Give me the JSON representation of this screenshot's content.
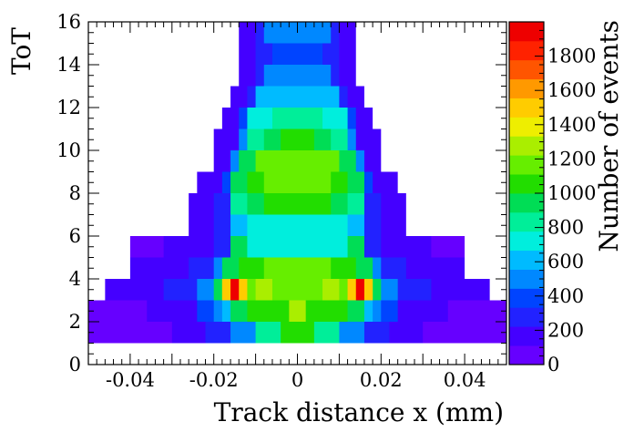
{
  "chart_data": {
    "type": "heatmap",
    "title": "",
    "xlabel": "Track distance x (mm)",
    "ylabel": "ToT",
    "zlabel": "Number of events",
    "xlim": [
      -0.05,
      0.05
    ],
    "ylim": [
      0,
      16
    ],
    "zlim": [
      0,
      2000
    ],
    "x_ticks": [
      -0.04,
      -0.02,
      0,
      0.02,
      0.04
    ],
    "x_tick_labels": [
      "-0.04",
      "-0.02",
      "0",
      "0.02",
      "0.04"
    ],
    "y_ticks": [
      0,
      2,
      4,
      6,
      8,
      10,
      12,
      14,
      16
    ],
    "y_tick_labels": [
      "0",
      "2",
      "4",
      "6",
      "8",
      "10",
      "12",
      "14",
      "16"
    ],
    "z_ticks": [
      0,
      200,
      400,
      600,
      800,
      1000,
      1200,
      1400,
      1600,
      1800
    ],
    "z_tick_labels": [
      "0",
      "200",
      "400",
      "600",
      "800",
      "1000",
      "1200",
      "1400",
      "1600",
      "1800"
    ],
    "x_bin_width": 0.002,
    "y_bin_width": 1,
    "y_bins_start": 1,
    "palette": [
      "#6600ff",
      "#4400ff",
      "#2222ff",
      "#0044ff",
      "#0088ff",
      "#00bbff",
      "#00eedd",
      "#00ee99",
      "#00dd55",
      "#22dd00",
      "#66ee00",
      "#aaee00",
      "#eeee00",
      "#ffcc00",
      "#ff9900",
      "#ff5500",
      "#ff2200",
      "#ee0000"
    ],
    "rows": [
      {
        "y": 1,
        "cells": [
          [
            -0.05,
            0.05,
            80
          ],
          [
            -0.03,
            0.03,
            180
          ],
          [
            -0.022,
            0.022,
            300
          ],
          [
            -0.016,
            0.016,
            520
          ],
          [
            -0.01,
            0.01,
            860
          ],
          [
            -0.004,
            0.004,
            1000
          ]
        ]
      },
      {
        "y": 2,
        "cells": [
          [
            -0.05,
            0.05,
            110
          ],
          [
            -0.036,
            0.036,
            220
          ],
          [
            -0.024,
            0.024,
            380
          ],
          [
            -0.02,
            0.02,
            520
          ],
          [
            -0.018,
            0.018,
            640
          ],
          [
            -0.016,
            0.016,
            900
          ],
          [
            -0.012,
            0.012,
            1080
          ],
          [
            -0.002,
            0.002,
            1250
          ]
        ]
      },
      {
        "y": 3,
        "cells": [
          [
            -0.046,
            0.046,
            170
          ],
          [
            -0.032,
            0.032,
            330
          ],
          [
            -0.024,
            0.024,
            500
          ],
          [
            -0.02,
            0.02,
            900
          ],
          [
            -0.018,
            0.018,
            1360
          ],
          [
            -0.014,
            0.014,
            1160
          ],
          [
            -0.01,
            0.01,
            1240
          ],
          [
            -0.006,
            0.006,
            1160
          ]
        ]
      },
      {
        "y": 3,
        "cells": [
          [
            -0.018,
            -0.012,
            1500
          ],
          [
            -0.016,
            -0.014,
            1900
          ],
          [
            0.012,
            0.018,
            1500
          ],
          [
            0.014,
            0.016,
            1900
          ]
        ]
      },
      {
        "y": 4,
        "cells": [
          [
            -0.04,
            0.04,
            140
          ],
          [
            -0.026,
            0.026,
            300
          ],
          [
            -0.02,
            0.02,
            500
          ],
          [
            -0.018,
            0.018,
            900
          ],
          [
            -0.014,
            0.014,
            1060
          ],
          [
            -0.008,
            0.008,
            1160
          ]
        ]
      },
      {
        "y": 5,
        "cells": [
          [
            -0.04,
            0.04,
            110
          ],
          [
            -0.032,
            0.032,
            180
          ],
          [
            -0.02,
            0.02,
            300
          ],
          [
            -0.016,
            0.016,
            900
          ],
          [
            -0.012,
            0.012,
            700
          ],
          [
            -0.006,
            0.006,
            760
          ]
        ]
      },
      {
        "y": 6,
        "cells": [
          [
            -0.026,
            0.026,
            140
          ],
          [
            -0.02,
            0.02,
            320
          ],
          [
            -0.016,
            0.016,
            620
          ],
          [
            -0.012,
            0.012,
            720
          ]
        ]
      },
      {
        "y": 7,
        "cells": [
          [
            -0.026,
            0.026,
            140
          ],
          [
            -0.02,
            0.02,
            300
          ],
          [
            -0.016,
            0.016,
            780
          ],
          [
            -0.012,
            0.012,
            940
          ],
          [
            -0.008,
            0.008,
            1060
          ]
        ]
      },
      {
        "y": 8,
        "cells": [
          [
            -0.024,
            0.024,
            140
          ],
          [
            -0.018,
            0.018,
            340
          ],
          [
            -0.016,
            0.016,
            900
          ],
          [
            -0.012,
            0.012,
            1060
          ],
          [
            -0.008,
            0.008,
            1160
          ]
        ]
      },
      {
        "y": 9,
        "cells": [
          [
            -0.02,
            0.02,
            160
          ],
          [
            -0.016,
            0.016,
            520
          ],
          [
            -0.014,
            0.014,
            900
          ],
          [
            -0.01,
            0.01,
            1120
          ],
          [
            -0.006,
            0.006,
            1200
          ]
        ]
      },
      {
        "y": 10,
        "cells": [
          [
            -0.02,
            0.02,
            150
          ],
          [
            -0.014,
            0.014,
            460
          ],
          [
            -0.012,
            0.012,
            860
          ],
          [
            -0.008,
            0.008,
            980
          ],
          [
            -0.004,
            0.004,
            1060
          ]
        ]
      },
      {
        "y": 11,
        "cells": [
          [
            -0.018,
            0.018,
            140
          ],
          [
            -0.014,
            0.014,
            360
          ],
          [
            -0.012,
            0.012,
            720
          ],
          [
            -0.006,
            0.006,
            800
          ]
        ]
      },
      {
        "y": 12,
        "cells": [
          [
            -0.016,
            0.016,
            130
          ],
          [
            -0.012,
            0.012,
            300
          ],
          [
            -0.01,
            0.01,
            560
          ],
          [
            -0.004,
            0.004,
            640
          ]
        ]
      },
      {
        "y": 13,
        "cells": [
          [
            -0.014,
            0.014,
            130
          ],
          [
            -0.01,
            0.01,
            300
          ],
          [
            -0.008,
            0.008,
            480
          ],
          [
            -0.002,
            0.002,
            540
          ]
        ]
      },
      {
        "y": 14,
        "cells": [
          [
            -0.014,
            0.014,
            120
          ],
          [
            -0.01,
            0.01,
            260
          ],
          [
            -0.006,
            0.006,
            420
          ]
        ]
      },
      {
        "y": 15,
        "cells": [
          [
            -0.014,
            0.014,
            130
          ],
          [
            -0.01,
            0.01,
            300
          ],
          [
            -0.008,
            0.008,
            460
          ]
        ]
      }
    ]
  }
}
